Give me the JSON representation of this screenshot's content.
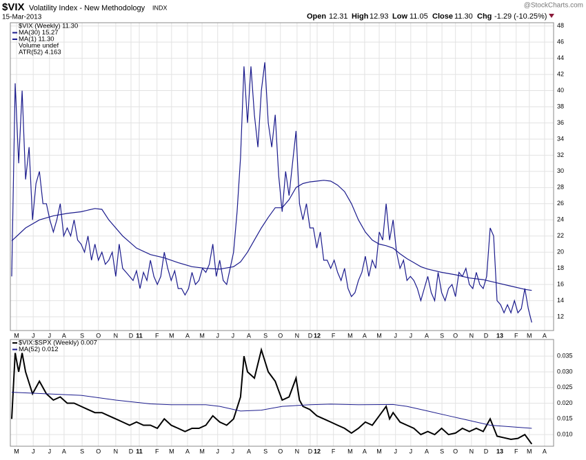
{
  "header": {
    "symbol": "$VIX",
    "name": "Volatility Index - New Methodology",
    "exchange": "INDX",
    "date": "15-Mar-2013",
    "source": "@StockCharts.com",
    "quote": [
      {
        "label": "Open",
        "value": "12.31"
      },
      {
        "label": "High",
        "value": "12.93"
      },
      {
        "label": "Low",
        "value": "11.05"
      },
      {
        "label": "Close",
        "value": "11.30"
      },
      {
        "label": "Chg",
        "value": "-1.29 (-10.25%)"
      }
    ]
  },
  "chart_data": [
    {
      "type": "line",
      "legend_notes": [
        "$VIX (Weekly) 11.30",
        "Volume undef",
        "ATR(52) 4.163"
      ],
      "xlim": [
        -0.4,
        156.3
      ],
      "ylim": [
        10.3,
        48.4
      ],
      "grid": true,
      "yticks": [
        12,
        14,
        16,
        18,
        20,
        22,
        24,
        26,
        28,
        30,
        32,
        34,
        36,
        38,
        40,
        42,
        44,
        46,
        48
      ],
      "xticks": [
        {
          "value": 1.4,
          "label": "M"
        },
        {
          "value": 6.2,
          "label": "J"
        },
        {
          "value": 10.9,
          "label": "J"
        },
        {
          "value": 15.1,
          "label": "A"
        },
        {
          "value": 20.3,
          "label": "S"
        },
        {
          "value": 25,
          "label": "O"
        },
        {
          "value": 30,
          "label": "N"
        },
        {
          "value": 34.4,
          "label": "D"
        },
        {
          "value": 36.8,
          "label": "11"
        },
        {
          "value": 41.9,
          "label": "F"
        },
        {
          "value": 46.1,
          "label": "M"
        },
        {
          "value": 50.7,
          "label": "A"
        },
        {
          "value": 54.9,
          "label": "M"
        },
        {
          "value": 59.4,
          "label": "J"
        },
        {
          "value": 63.8,
          "label": "J"
        },
        {
          "value": 68.4,
          "label": "A"
        },
        {
          "value": 73.2,
          "label": "S"
        },
        {
          "value": 77.5,
          "label": "O"
        },
        {
          "value": 82.3,
          "label": "N"
        },
        {
          "value": 86.1,
          "label": "D"
        },
        {
          "value": 88.1,
          "label": "12"
        },
        {
          "value": 92.8,
          "label": "F"
        },
        {
          "value": 97.6,
          "label": "M"
        },
        {
          "value": 101.8,
          "label": "A"
        },
        {
          "value": 106,
          "label": "M"
        },
        {
          "value": 110.7,
          "label": "J"
        },
        {
          "value": 115.1,
          "label": "J"
        },
        {
          "value": 119.7,
          "label": "A"
        },
        {
          "value": 124.1,
          "label": "S"
        },
        {
          "value": 128,
          "label": "O"
        },
        {
          "value": 132.6,
          "label": "N"
        },
        {
          "value": 136.8,
          "label": "D"
        },
        {
          "value": 140.8,
          "label": "13"
        },
        {
          "value": 145.5,
          "label": "F"
        },
        {
          "value": 149.3,
          "label": "M"
        },
        {
          "value": 153.7,
          "label": "A"
        }
      ],
      "series": [
        {
          "name": "MA(30) 15.27",
          "color": "#1a1a8c",
          "x": [
            0,
            4,
            8,
            12,
            16,
            20,
            24,
            26,
            28,
            32,
            36,
            40,
            44,
            48,
            52,
            56,
            60,
            64,
            66,
            68,
            70,
            72,
            74,
            76,
            78,
            80,
            82,
            84,
            86,
            88,
            90,
            92,
            94,
            96,
            98,
            100,
            102,
            104,
            106,
            108,
            110,
            112,
            114,
            116,
            118,
            120,
            124,
            128,
            132,
            136,
            140,
            144,
            148,
            150
          ],
          "values": [
            21.4,
            23,
            24,
            24.5,
            24.8,
            25,
            25.4,
            25.3,
            24,
            22,
            20.5,
            19.7,
            19.3,
            18.7,
            18.2,
            18,
            17.9,
            18.2,
            18.8,
            20,
            21.5,
            23,
            24.3,
            25.5,
            25.5,
            26.5,
            28,
            28.5,
            28.7,
            28.8,
            28.9,
            28.8,
            28.3,
            27.5,
            26,
            24,
            22.5,
            21.5,
            21,
            20.8,
            20.5,
            19.8,
            19.2,
            18.7,
            18.2,
            17.9,
            17.5,
            17.2,
            16.8,
            16.6,
            16.2,
            15.8,
            15.4,
            15.27
          ]
        },
        {
          "name": "MA(1) 11.30",
          "color": "#1a1a8c",
          "x": [
            0,
            1,
            2,
            3,
            4,
            5,
            6,
            7,
            8,
            9,
            10,
            11,
            12,
            13,
            14,
            15,
            16,
            17,
            18,
            19,
            20,
            21,
            22,
            23,
            24,
            25,
            26,
            27,
            28,
            29,
            30,
            31,
            32,
            33,
            34,
            35,
            36,
            37,
            38,
            39,
            40,
            41,
            42,
            43,
            44,
            45,
            46,
            47,
            48,
            49,
            50,
            51,
            52,
            53,
            54,
            55,
            56,
            57,
            58,
            59,
            60,
            61,
            62,
            63,
            64,
            65,
            66,
            67,
            68,
            69,
            70,
            71,
            72,
            73,
            74,
            75,
            76,
            77,
            78,
            79,
            80,
            81,
            82,
            83,
            84,
            85,
            86,
            87,
            88,
            89,
            90,
            91,
            92,
            93,
            94,
            95,
            96,
            97,
            98,
            99,
            100,
            101,
            102,
            103,
            104,
            105,
            106,
            107,
            108,
            109,
            110,
            111,
            112,
            113,
            114,
            115,
            116,
            117,
            118,
            119,
            120,
            121,
            122,
            123,
            124,
            125,
            126,
            127,
            128,
            129,
            130,
            131,
            132,
            133,
            134,
            135,
            136,
            137,
            138,
            139,
            140,
            141,
            142,
            143,
            144,
            145,
            146,
            147,
            148,
            149,
            150
          ],
          "values": [
            17,
            40.9,
            31,
            40,
            29,
            33,
            24,
            28.5,
            30,
            26,
            26,
            24,
            22.5,
            24,
            26,
            22,
            23,
            22,
            24,
            21.5,
            21,
            20,
            22,
            19,
            21,
            19,
            20,
            18.5,
            19,
            20,
            17,
            21,
            18,
            17.5,
            17,
            16.5,
            17.7,
            15.5,
            17.5,
            16.5,
            19,
            17,
            16,
            17,
            20,
            18,
            16.5,
            17.7,
            15.5,
            15.5,
            14.7,
            15.5,
            17.5,
            16,
            16.5,
            18,
            17.5,
            18.5,
            21,
            17,
            19,
            16.5,
            16,
            18,
            20,
            25,
            31.7,
            43,
            36,
            43,
            37,
            33,
            40,
            43.5,
            36,
            33,
            37,
            29.5,
            25,
            30,
            27,
            31,
            35,
            26,
            24,
            26,
            23,
            23,
            20.5,
            22.5,
            19,
            19,
            18,
            19,
            17.5,
            16.5,
            18,
            15.5,
            14.5,
            15,
            16.5,
            17.5,
            19.5,
            17,
            19,
            18,
            22.5,
            21.5,
            26,
            21.5,
            24,
            20,
            18,
            19,
            16.5,
            17,
            16.5,
            15.5,
            14,
            15.5,
            17,
            15,
            14,
            17.5,
            15,
            14,
            15.5,
            16,
            14.5,
            17.5,
            17,
            18,
            16,
            15.5,
            17.5,
            16,
            15.5,
            17,
            23,
            22,
            14,
            13.5,
            12.5,
            13.5,
            12.5,
            14,
            12.5,
            13,
            15.5,
            13,
            11.3
          ]
        }
      ]
    },
    {
      "type": "line",
      "xlim": [
        -0.4,
        156.3
      ],
      "ylim": [
        0.0063,
        0.0403
      ],
      "grid": true,
      "yticks": [
        {
          "value": 0.01,
          "label": "0.010"
        },
        0.015,
        {
          "value": 0.02,
          "label": "0.020"
        },
        0.025,
        {
          "value": 0.03,
          "label": "0.030"
        },
        0.035
      ],
      "xticks": [
        {
          "value": 1.4,
          "label": "M"
        },
        {
          "value": 6.2,
          "label": "J"
        },
        {
          "value": 10.9,
          "label": "J"
        },
        {
          "value": 15.1,
          "label": "A"
        },
        {
          "value": 20.3,
          "label": "S"
        },
        {
          "value": 25,
          "label": "O"
        },
        {
          "value": 30,
          "label": "N"
        },
        {
          "value": 34.4,
          "label": "D"
        },
        {
          "value": 36.8,
          "label": "11"
        },
        {
          "value": 41.9,
          "label": "F"
        },
        {
          "value": 46.1,
          "label": "M"
        },
        {
          "value": 50.7,
          "label": "A"
        },
        {
          "value": 54.9,
          "label": "M"
        },
        {
          "value": 59.4,
          "label": "J"
        },
        {
          "value": 63.8,
          "label": "J"
        },
        {
          "value": 68.4,
          "label": "A"
        },
        {
          "value": 73.2,
          "label": "S"
        },
        {
          "value": 77.5,
          "label": "O"
        },
        {
          "value": 82.3,
          "label": "N"
        },
        {
          "value": 86.1,
          "label": "D"
        },
        {
          "value": 88.1,
          "label": "12"
        },
        {
          "value": 92.8,
          "label": "F"
        },
        {
          "value": 97.6,
          "label": "M"
        },
        {
          "value": 101.8,
          "label": "A"
        },
        {
          "value": 106,
          "label": "M"
        },
        {
          "value": 110.7,
          "label": "J"
        },
        {
          "value": 115.1,
          "label": "J"
        },
        {
          "value": 119.7,
          "label": "A"
        },
        {
          "value": 124.1,
          "label": "S"
        },
        {
          "value": 128,
          "label": "O"
        },
        {
          "value": 132.6,
          "label": "N"
        },
        {
          "value": 136.8,
          "label": "D"
        },
        {
          "value": 140.8,
          "label": "13"
        },
        {
          "value": 145.5,
          "label": "F"
        },
        {
          "value": 149.3,
          "label": "M"
        },
        {
          "value": 153.7,
          "label": "A"
        }
      ],
      "series": [
        {
          "name": "$VIX:$SPX (Weekly) 0.007",
          "color": "#000000",
          "width": 2,
          "x": [
            0,
            1,
            2,
            3,
            4,
            6,
            8,
            10,
            12,
            14,
            16,
            18,
            20,
            22,
            24,
            26,
            28,
            30,
            32,
            34,
            36,
            38,
            40,
            42,
            44,
            46,
            48,
            50,
            52,
            54,
            56,
            58,
            60,
            62,
            64,
            66,
            67,
            68,
            70,
            72,
            74,
            76,
            77,
            78,
            80,
            82,
            83,
            84,
            86,
            88,
            90,
            92,
            94,
            96,
            98,
            100,
            102,
            104,
            106,
            108,
            109,
            110,
            112,
            114,
            116,
            118,
            120,
            122,
            124,
            126,
            128,
            130,
            132,
            134,
            136,
            138,
            140,
            142,
            144,
            146,
            148,
            150
          ],
          "values": [
            0.015,
            0.036,
            0.03,
            0.036,
            0.03,
            0.023,
            0.027,
            0.023,
            0.021,
            0.022,
            0.02,
            0.02,
            0.019,
            0.018,
            0.017,
            0.017,
            0.016,
            0.015,
            0.014,
            0.013,
            0.014,
            0.013,
            0.013,
            0.012,
            0.015,
            0.013,
            0.012,
            0.011,
            0.012,
            0.012,
            0.013,
            0.016,
            0.014,
            0.013,
            0.015,
            0.022,
            0.035,
            0.03,
            0.028,
            0.037,
            0.03,
            0.027,
            0.024,
            0.021,
            0.022,
            0.028,
            0.021,
            0.019,
            0.018,
            0.016,
            0.015,
            0.014,
            0.013,
            0.012,
            0.0105,
            0.012,
            0.014,
            0.013,
            0.016,
            0.019,
            0.015,
            0.017,
            0.014,
            0.013,
            0.012,
            0.01,
            0.011,
            0.01,
            0.012,
            0.01,
            0.0105,
            0.012,
            0.011,
            0.012,
            0.011,
            0.015,
            0.0095,
            0.009,
            0.0085,
            0.0088,
            0.01,
            0.007
          ]
        },
        {
          "name": "MA(52) 0.012",
          "color": "#1a1a8c",
          "width": 1,
          "x": [
            0,
            10,
            20,
            30,
            40,
            46,
            56,
            60,
            66,
            72,
            78,
            86,
            92,
            100,
            110,
            114,
            120,
            126,
            132,
            138,
            144,
            150
          ],
          "values": [
            0.0235,
            0.023,
            0.0225,
            0.021,
            0.0198,
            0.0195,
            0.0195,
            0.019,
            0.0175,
            0.0178,
            0.019,
            0.0195,
            0.0197,
            0.0195,
            0.0196,
            0.019,
            0.0175,
            0.016,
            0.0145,
            0.013,
            0.0125,
            0.012
          ]
        }
      ]
    }
  ]
}
